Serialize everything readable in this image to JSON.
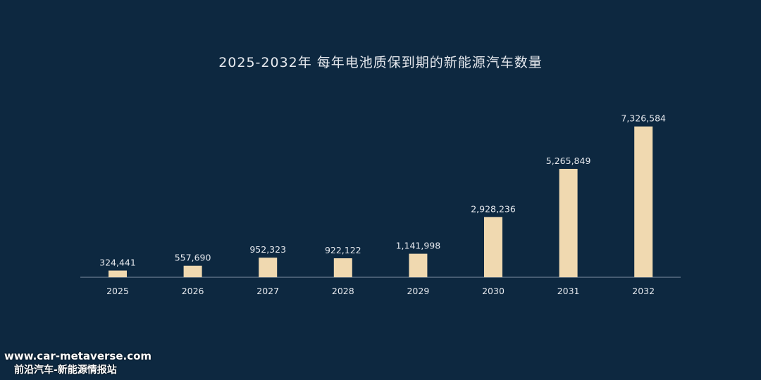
{
  "chart_data": {
    "type": "bar",
    "title": "2025-2032年 每年电池质保到期的新能源汽车数量",
    "categories": [
      "2025",
      "2026",
      "2027",
      "2028",
      "2029",
      "2030",
      "2031",
      "2032"
    ],
    "values": [
      324441,
      557690,
      952323,
      922122,
      1141998,
      2928236,
      5265849,
      7326584
    ],
    "value_labels": [
      "324,441",
      "557,690",
      "952,323",
      "922,122",
      "1,141,998",
      "2,928,236",
      "5,265,849",
      "7,326,584"
    ],
    "ylim": [
      0,
      8000000
    ],
    "grid": false,
    "legend": "none",
    "xlabel": "",
    "ylabel": ""
  },
  "colors": {
    "background": "#0d2840",
    "bar": "#f0d9b0",
    "axis": "#7e8fa3",
    "text": "#e6e9ee"
  },
  "watermark": {
    "url": "www.car-metaverse.com",
    "brand": "前沿汽车-新能源情报站"
  }
}
